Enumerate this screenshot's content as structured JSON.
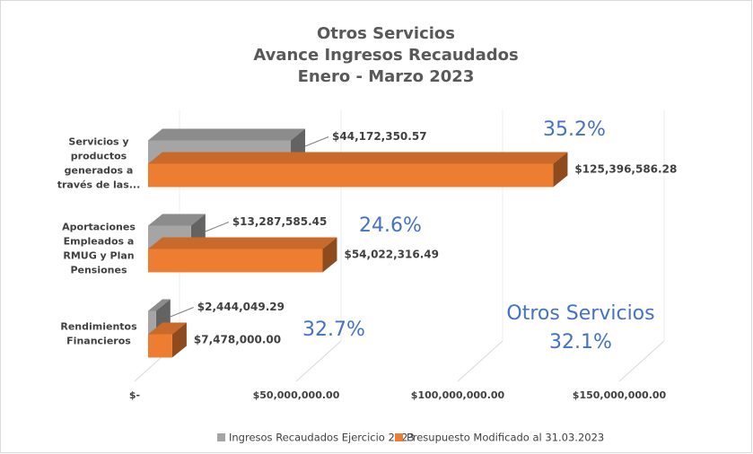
{
  "chart_data": {
    "type": "bar3d_horizontal",
    "title": [
      "Otros Servicios",
      "Avance Ingresos Recaudados",
      "Enero - Marzo 2023"
    ],
    "categories": [
      "Servicios y productos generados a través de las...",
      "Aportaciones Empleados a RMUG y Plan Pensiones",
      "Rendimientos Financieros"
    ],
    "series": [
      {
        "name": "Ingresos Recaudados Ejercicio 2023",
        "color": "#a5a5a5",
        "values": [
          44172350.57,
          13287585.45,
          2444049.29
        ],
        "value_labels": [
          "$44,172,350.57",
          "$13,287,585.45",
          "$2,444,049.29"
        ]
      },
      {
        "name": "Presupuesto Modificado al 31.03.2023",
        "color": "#ed7d31",
        "values": [
          125396586.28,
          54022316.49,
          7478000.0
        ],
        "value_labels": [
          "$125,396,586.28",
          "$54,022,316.49",
          "$7,478,000.00"
        ]
      }
    ],
    "xlim": [
      0,
      150000000
    ],
    "xticks": [
      {
        "value": 0,
        "label": "$-"
      },
      {
        "value": 50000000,
        "label": "$50,000,000.00"
      },
      {
        "value": 100000000,
        "label": "$100,000,000.00"
      },
      {
        "value": 150000000,
        "label": "$150,000,000.00"
      }
    ],
    "grid": true,
    "legend": "bottom",
    "annotations": [
      "35.2%",
      "24.6%",
      "32.7%",
      "Otros Servicios",
      "32.1%"
    ]
  }
}
